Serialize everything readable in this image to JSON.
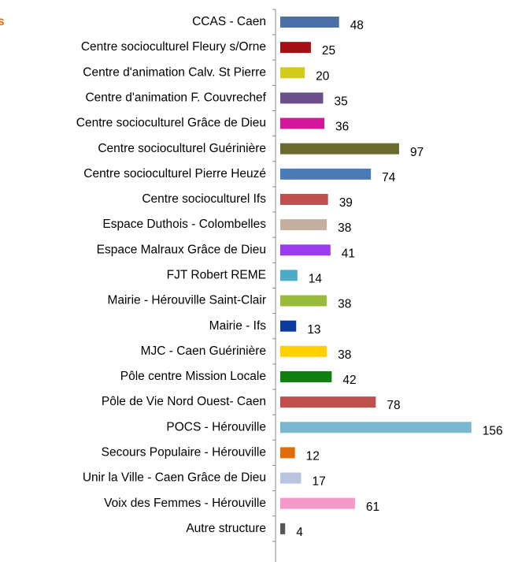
{
  "chart_data": {
    "type": "bar",
    "orientation": "horizontal",
    "title": "s",
    "categories": [
      "CCAS - Caen",
      "Centre socioculturel Fleury s/Orne",
      "Centre d'animation Calv. St Pierre",
      "Centre d'animation F. Couvrechef",
      "Centre socioculturel Grâce de Dieu",
      "Centre socioculturel Guérinière",
      "Centre socioculturel Pierre Heuzé",
      "Centre socioculturel Ifs",
      "Espace Duthois - Colombelles",
      "Espace Malraux Grâce de Dieu",
      "FJT Robert REME",
      "Mairie - Hérouville Saint-Clair",
      "Mairie - Ifs",
      "MJC - Caen Guérinière",
      "Pôle centre Mission Locale",
      "Pôle de Vie Nord Ouest- Caen",
      "POCS - Hérouville",
      "Secours Populaire - Hérouville",
      "Unir la Ville - Caen Grâce de Dieu",
      "Voix des Femmes - Hérouville",
      "Autre structure"
    ],
    "values": [
      48,
      25,
      20,
      35,
      36,
      97,
      74,
      39,
      38,
      41,
      14,
      38,
      13,
      38,
      42,
      78,
      156,
      12,
      17,
      61,
      4
    ],
    "colors": [
      "#4a6fa5",
      "#a50f15",
      "#d4cc1a",
      "#6a4f8a",
      "#d4169a",
      "#6b6b2e",
      "#4a7ab8",
      "#c0504d",
      "#c4afa0",
      "#9b3bf0",
      "#4bacc6",
      "#9bbb3b",
      "#0a3a9a",
      "#ffd000",
      "#0f7f0f",
      "#c0504d",
      "#7ab8d0",
      "#e36c0a",
      "#b8c4e0",
      "#f59ac8",
      "#555555"
    ],
    "xlim": [
      0,
      160
    ]
  }
}
